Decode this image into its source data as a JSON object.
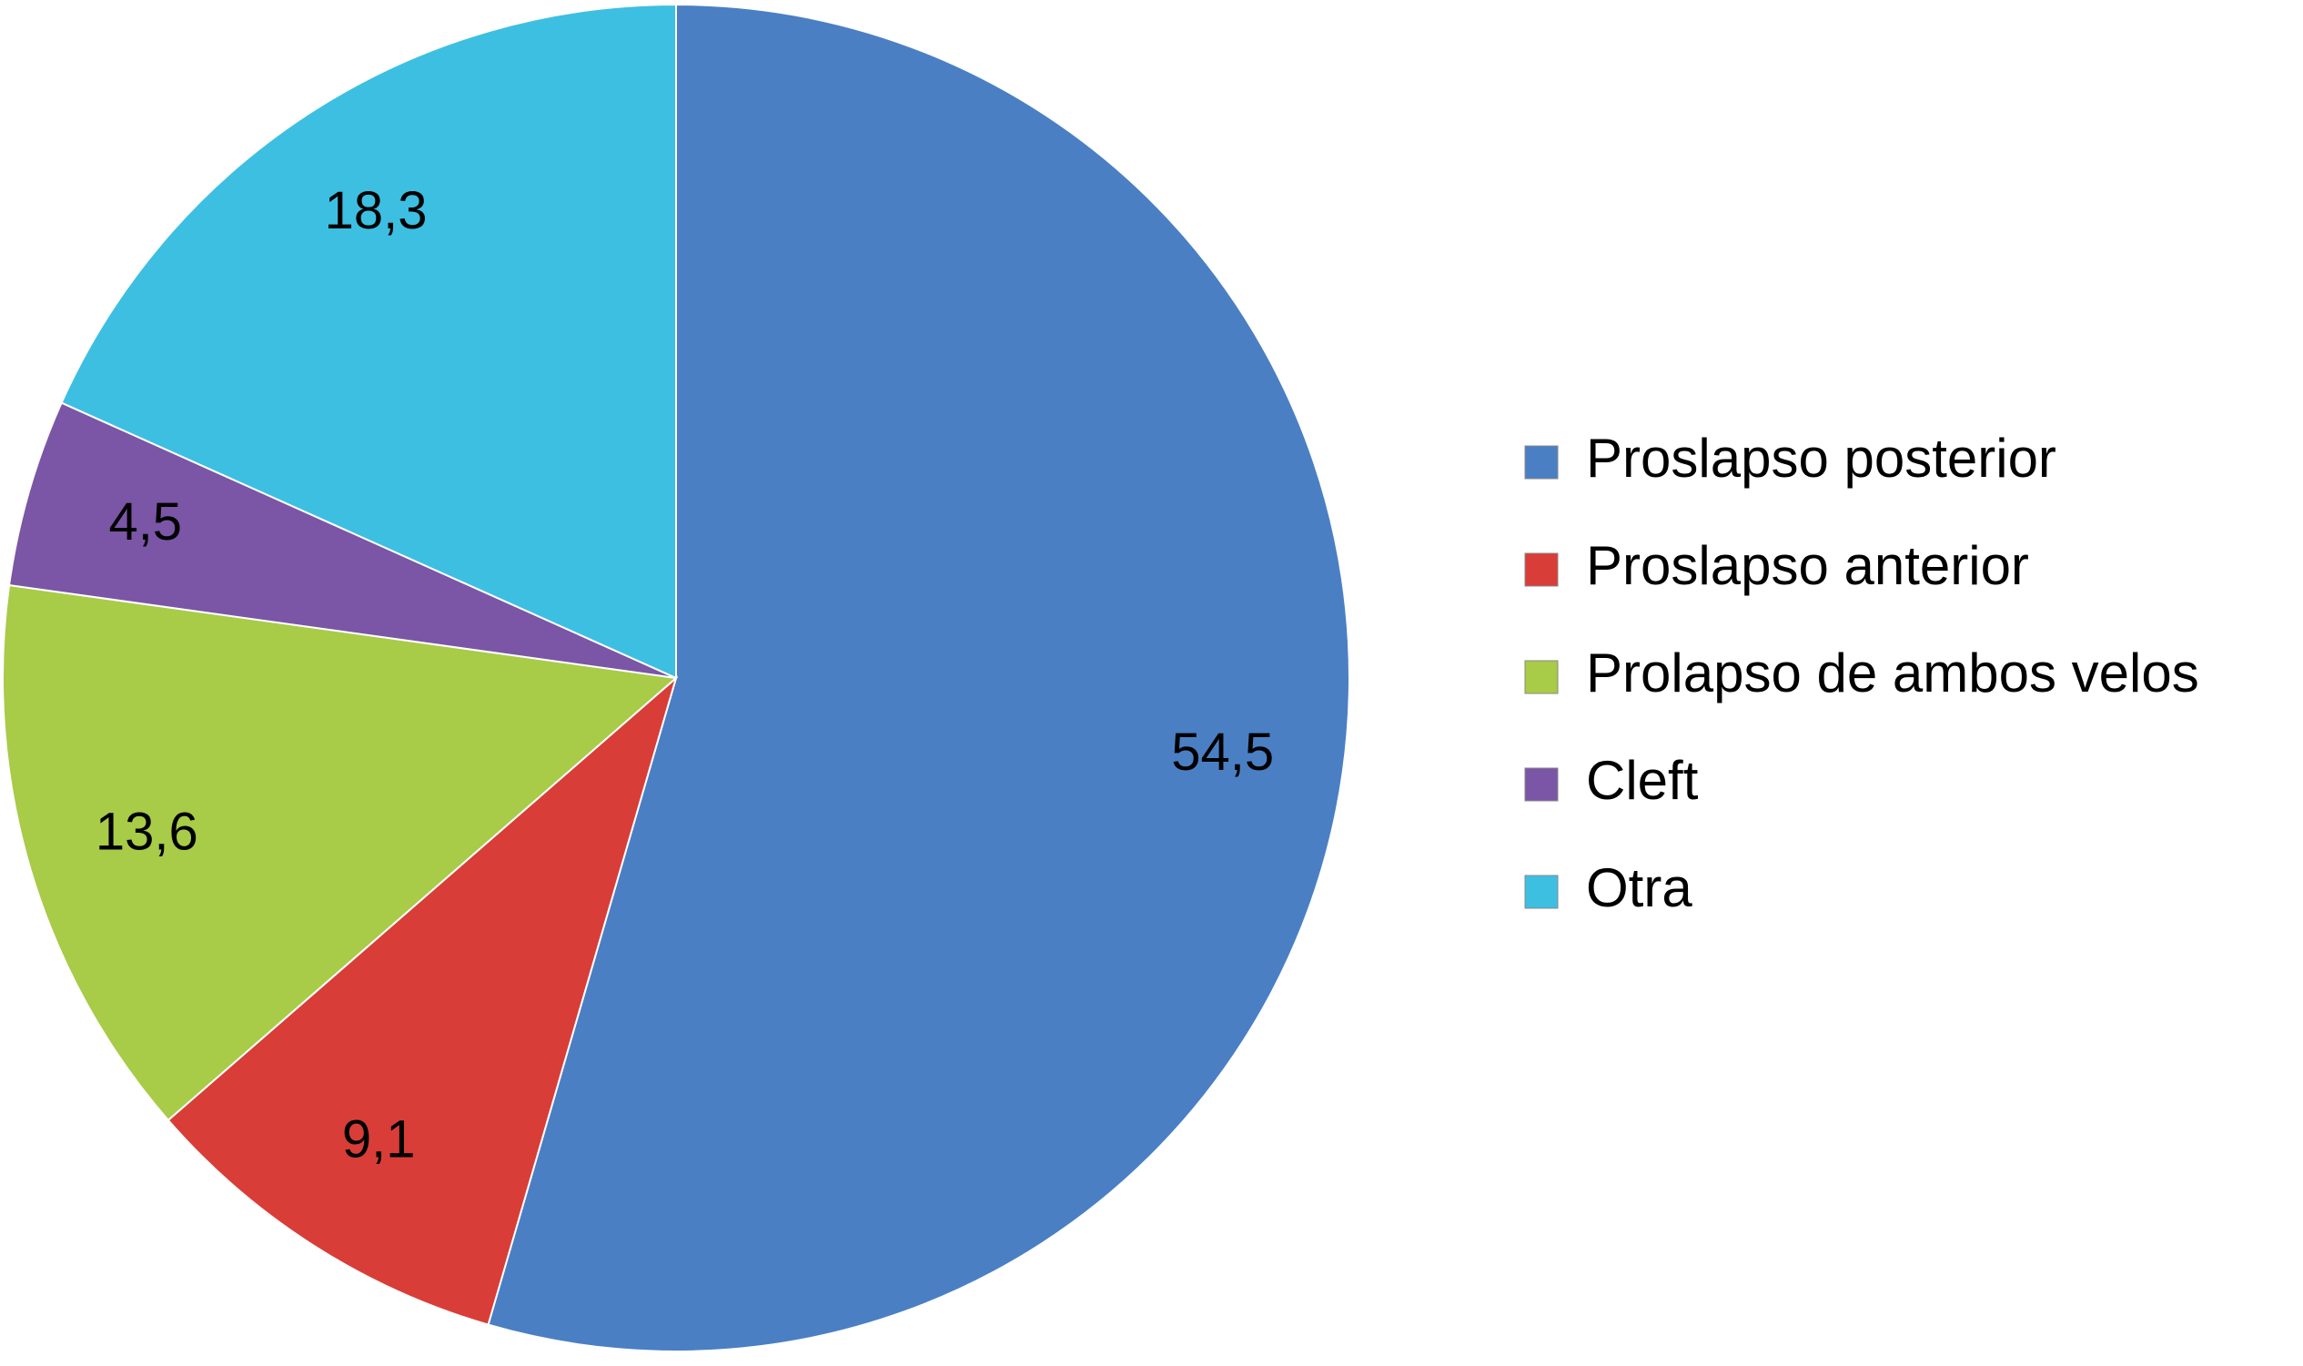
{
  "chart_data": {
    "type": "pie",
    "categories": [
      "Proslapso posterior",
      "Proslapso anterior",
      "Prolapso de ambos velos",
      "Cleft",
      "Otra"
    ],
    "values": [
      54.5,
      9.1,
      13.6,
      4.5,
      18.3
    ],
    "value_labels": [
      "54,5",
      "9,1",
      "13,6",
      "4,5",
      "18,3"
    ],
    "colors": [
      "#4a7fc4",
      "#d93d37",
      "#a8cb48",
      "#7b55a6",
      "#3dbfe2"
    ],
    "legend": "right"
  }
}
